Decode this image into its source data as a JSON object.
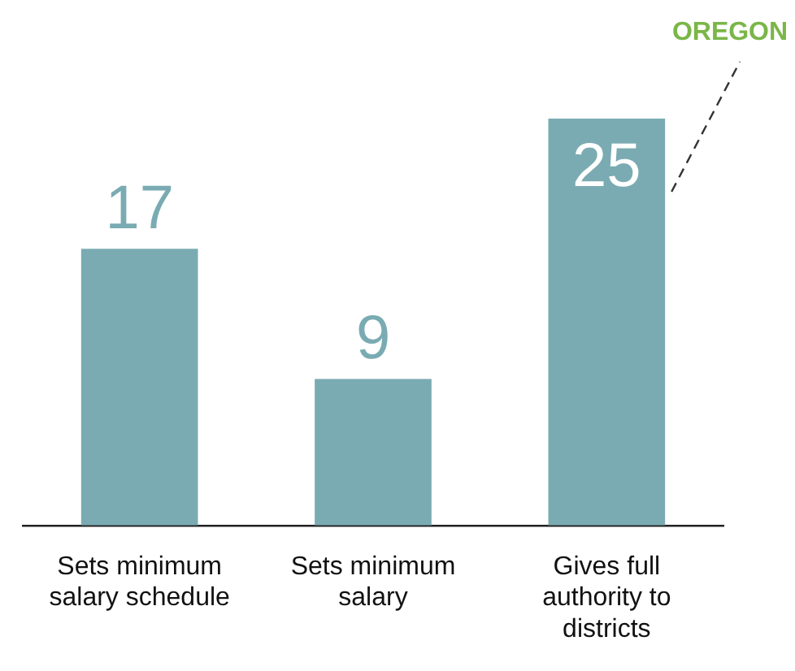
{
  "chart_data": {
    "type": "bar",
    "categories": [
      "Sets minimum salary schedule",
      "Sets minimum salary",
      "Gives full authority to districts"
    ],
    "values": [
      17,
      9,
      25
    ],
    "color": "#7aabb2",
    "data_labels": true,
    "grid": false,
    "legend": false,
    "annotations": [
      "OREGON"
    ]
  }
}
